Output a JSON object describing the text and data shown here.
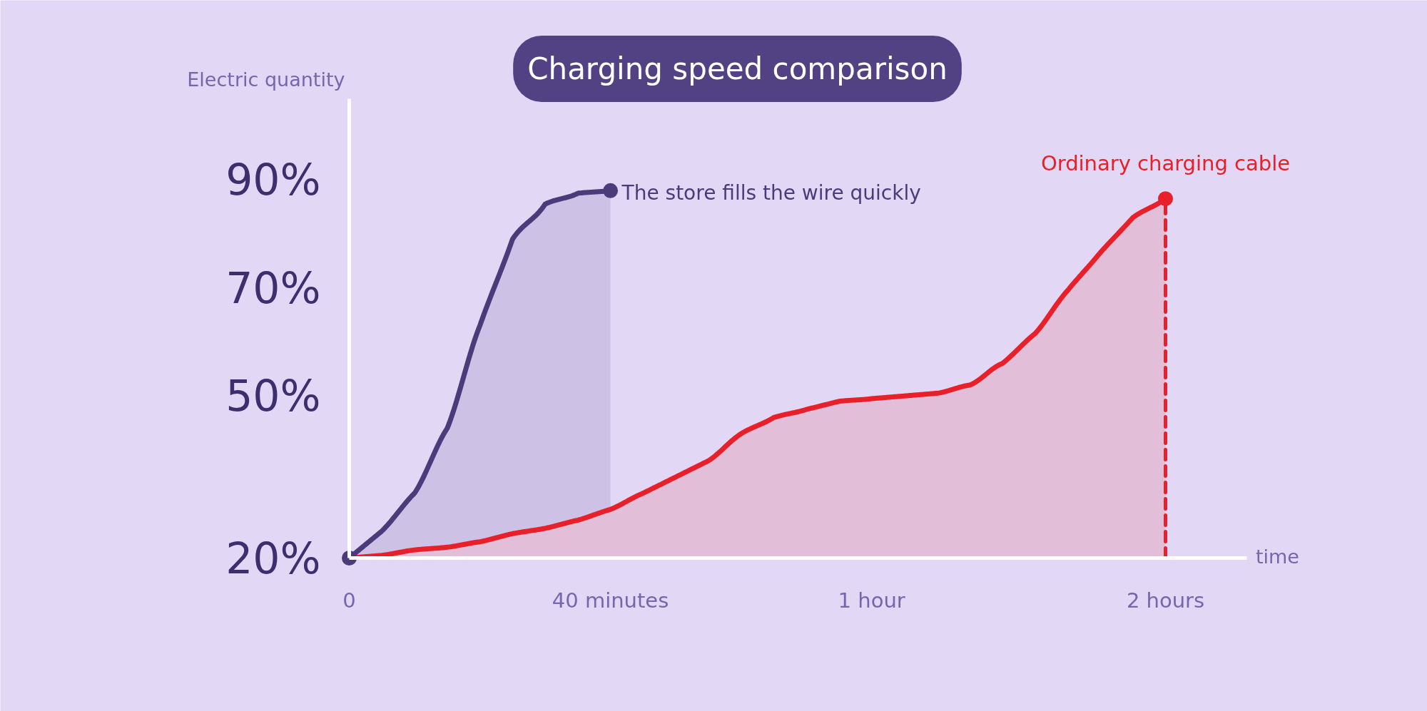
{
  "chart_data": {
    "type": "area",
    "title": "Charging speed comparison",
    "xlabel": "time",
    "ylabel": "Electric quantity",
    "categories": [
      "0",
      null,
      null,
      null,
      null,
      null,
      null,
      null,
      "40 minutes",
      null,
      null,
      null,
      null,
      null,
      null,
      null,
      "1 hour",
      null,
      null,
      null,
      null,
      null,
      null,
      null,
      null,
      "2 hours",
      null,
      null
    ],
    "ylim": [
      20,
      105
    ],
    "yticks": [
      {
        "value": 20,
        "label": "20%"
      },
      {
        "value": 50,
        "label": "50%"
      },
      {
        "value": 70,
        "label": "70%"
      },
      {
        "value": 90,
        "label": "90%"
      }
    ],
    "series": [
      {
        "name": "The store fills the wire quickly",
        "color": "#4b3b7a",
        "values": [
          20,
          25,
          32,
          44,
          63,
          79,
          85.5,
          87.5,
          88,
          null,
          null,
          null,
          null,
          null,
          null,
          null,
          null,
          null,
          null,
          null,
          null,
          null,
          null,
          null,
          null,
          null,
          null,
          null
        ]
      },
      {
        "name": "Ordinary charging cable",
        "color": "#e8202a",
        "values": [
          20,
          20.5,
          21.5,
          22,
          23,
          24.5,
          25.5,
          27,
          29,
          32,
          35,
          38,
          43,
          46,
          47.5,
          49,
          49.5,
          50,
          50.5,
          52,
          56,
          61.5,
          69.5,
          76.5,
          83,
          86.5,
          null,
          null
        ]
      },
      {
        "type": "scatter",
        "marker": "circle",
        "x": [
          "0",
          "40 minutes",
          "2 hours"
        ],
        "values": [
          20,
          88,
          86.5
        ],
        "colors": [
          "#4b3b7a",
          "#4b3b7a",
          "#e8202a"
        ]
      },
      {
        "type": "line",
        "line_style": "dashed",
        "color": "#e8202a",
        "x": [
          "2 hours",
          "2 hours"
        ],
        "values": [
          20,
          86.5
        ]
      }
    ]
  }
}
